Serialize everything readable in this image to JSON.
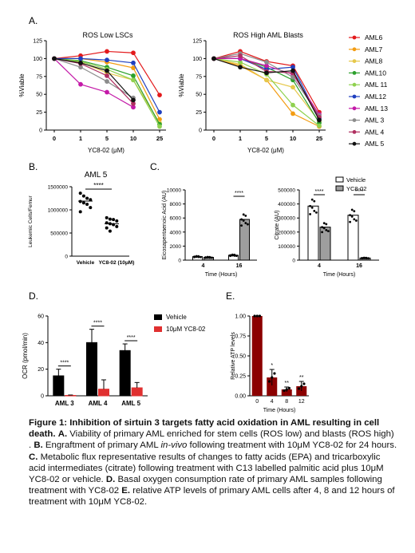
{
  "colors": {
    "AML6": "#e31a1c",
    "AML7": "#f39c12",
    "AML8": "#e6c84a",
    "AML10": "#2ca02c",
    "AML 11": "#8fd14f",
    "AML12": "#1f3fbf",
    "AML 13": "#c41aa8",
    "AML 3": "#8c8c8c",
    "AML 4": "#b03060",
    "AML 5": "#111111",
    "vehicle": "#000000",
    "treated": "#e03030",
    "panelE": "#8b0000"
  },
  "panels": {
    "A": {
      "label": "A.",
      "left_title": "ROS Low LSCs",
      "right_title": "ROS High AML Blasts"
    },
    "B": {
      "label": "B.",
      "title": "AML 5"
    },
    "C": {
      "label": "C."
    },
    "D": {
      "label": "D."
    },
    "E": {
      "label": "E."
    }
  },
  "legendA": [
    "AML6",
    "AML7",
    "AML8",
    "AML10",
    "AML 11",
    "AML12",
    "AML 13",
    "AML 3",
    "AML 4",
    "AML 5"
  ],
  "chart_data": [
    {
      "id": "A-left",
      "type": "line",
      "title": "ROS Low LSCs",
      "xlabel": "YC8-02 (μM)",
      "ylabel": "%Viable",
      "x": [
        "0",
        "1",
        "5",
        "10",
        "25"
      ],
      "ylim": [
        0,
        125
      ],
      "yticks": [
        "0",
        "25",
        "50",
        "75",
        "100",
        "125"
      ],
      "series": [
        {
          "name": "AML6",
          "values": [
            100,
            104,
            110,
            108,
            49
          ]
        },
        {
          "name": "AML7",
          "values": [
            100,
            100,
            95,
            87,
            15
          ]
        },
        {
          "name": "AML8",
          "values": [
            100,
            95,
            80,
            70,
            10
          ]
        },
        {
          "name": "AML10",
          "values": [
            100,
            97,
            88,
            76,
            8
          ]
        },
        {
          "name": "AML 11",
          "values": [
            100,
            96,
            85,
            70,
            5
          ]
        },
        {
          "name": "AML12",
          "values": [
            100,
            100,
            98,
            94,
            25
          ]
        },
        {
          "name": "AML 13",
          "values": [
            100,
            64,
            53,
            32,
            null
          ]
        },
        {
          "name": "AML 3",
          "values": [
            100,
            88,
            68,
            45,
            null
          ]
        },
        {
          "name": "AML 4",
          "values": [
            100,
            93,
            76,
            37,
            null
          ]
        },
        {
          "name": "AML 5",
          "values": [
            100,
            94,
            83,
            42,
            null
          ]
        }
      ]
    },
    {
      "id": "A-right",
      "type": "line",
      "title": "ROS High AML Blasts",
      "xlabel": "YC8-02 (μM)",
      "ylabel": "%Viable",
      "x": [
        "0",
        "1",
        "5",
        "10",
        "25"
      ],
      "ylim": [
        0,
        125
      ],
      "yticks": [
        "0",
        "25",
        "50",
        "75",
        "100",
        "125"
      ],
      "series": [
        {
          "name": "AML6",
          "values": [
            100,
            110,
            96,
            90,
            25
          ]
        },
        {
          "name": "AML7",
          "values": [
            100,
            90,
            70,
            23,
            5
          ]
        },
        {
          "name": "AML8",
          "values": [
            100,
            92,
            70,
            60,
            12
          ]
        },
        {
          "name": "AML10",
          "values": [
            100,
            100,
            88,
            70,
            10
          ]
        },
        {
          "name": "AML 11",
          "values": [
            100,
            95,
            78,
            35,
            6
          ]
        },
        {
          "name": "AML12",
          "values": [
            100,
            100,
            85,
            88,
            16
          ]
        },
        {
          "name": "AML 13",
          "values": [
            100,
            100,
            90,
            78,
            22
          ]
        },
        {
          "name": "AML 3",
          "values": [
            100,
            107,
            95,
            74,
            20
          ]
        },
        {
          "name": "AML 4",
          "values": [
            100,
            104,
            82,
            80,
            18
          ]
        },
        {
          "name": "AML 5",
          "values": [
            100,
            88,
            80,
            83,
            14
          ]
        }
      ]
    },
    {
      "id": "B",
      "type": "scatter",
      "title": "AML 5",
      "ylabel": "Leukemic Cells/Femur",
      "categories": [
        "Vehicle",
        "YC8-02 (10μM)"
      ],
      "ylim": [
        0,
        1500000
      ],
      "yticks": [
        "0",
        "500000",
        "1000000",
        "1500000"
      ],
      "means": [
        1190000,
        700000
      ],
      "points": [
        [
          1360000,
          1300000,
          1250000,
          1220000,
          1180000,
          1150000,
          1120000,
          1050000,
          960000
        ],
        [
          830000,
          800000,
          790000,
          760000,
          720000,
          700000,
          680000,
          640000,
          610000,
          540000
        ]
      ],
      "significance": "****"
    },
    {
      "id": "C-left",
      "type": "bar",
      "ylabel": "Eicosapentaenoic Acid (AU)",
      "xlabel": "Time (Hours)",
      "categories": [
        "4",
        "16"
      ],
      "ylim": [
        0,
        10000
      ],
      "yticks": [
        "0",
        "2000",
        "4000",
        "6000",
        "8000",
        "10000"
      ],
      "series": [
        {
          "name": "Vehicle",
          "values": [
            500,
            700
          ]
        },
        {
          "name": "YC8-02",
          "values": [
            400,
            5800
          ]
        }
      ],
      "significance": [
        "****"
      ]
    },
    {
      "id": "C-right",
      "type": "bar",
      "ylabel": "Citrate (AU)",
      "xlabel": "Time (Hours)",
      "categories": [
        "4",
        "16"
      ],
      "ylim": [
        0,
        500000
      ],
      "yticks": [
        "0",
        "100000",
        "200000",
        "300000",
        "400000",
        "500000"
      ],
      "series": [
        {
          "name": "Vehicle",
          "values": [
            385000,
            320000
          ]
        },
        {
          "name": "YC8-02",
          "values": [
            235000,
            15000
          ]
        }
      ],
      "legend": [
        "Vehicle",
        "YC8-02"
      ],
      "significance": [
        "****",
        "****"
      ]
    },
    {
      "id": "D",
      "type": "bar",
      "ylabel": "OCR (pmol/min)",
      "categories": [
        "AML 3",
        "AML 4",
        "AML 5"
      ],
      "ylim": [
        0,
        60
      ],
      "yticks": [
        "0",
        "20",
        "40",
        "60"
      ],
      "series": [
        {
          "name": "Vehicle",
          "values": [
            15,
            40,
            34
          ]
        },
        {
          "name": "10μM YC8-02",
          "values": [
            0.3,
            5,
            6
          ]
        }
      ],
      "errors": [
        [
          5,
          10,
          5
        ],
        [
          0.3,
          7,
          4
        ]
      ],
      "legend": [
        "Vehicle",
        "10μM YC8-02"
      ],
      "significance": [
        "****",
        "****",
        "****"
      ]
    },
    {
      "id": "E",
      "type": "bar",
      "ylabel": "Relative ATP levels",
      "xlabel": "Time (Hours)",
      "categories": [
        "0",
        "4",
        "8",
        "12"
      ],
      "ylim": [
        0,
        1.0
      ],
      "yticks": [
        "0.00",
        "0.25",
        "0.50",
        "0.75",
        "1.00"
      ],
      "values": [
        1.0,
        0.23,
        0.08,
        0.12
      ],
      "errors": [
        0.0,
        0.1,
        0.03,
        0.06
      ],
      "significance": [
        "",
        "*",
        "**",
        "**"
      ]
    }
  ],
  "caption": {
    "title": "Figure 1: Inhibition of sirtuin 3 targets fatty acid oxidation in AML resulting in cell death.",
    "a_label": "A.",
    "a_text": " Viability of primary AML enriched for stem cells (ROS low) and blasts (ROS high) . ",
    "b_label": "B.",
    "b_text1": " Engraftment of primary AML ",
    "b_italic": "in-vivo",
    "b_text2": " following treatment with 10μM YC8-02 for 24 hours. ",
    "c_label": "C.",
    "c_text": " Metabolic flux representative results of changes to fatty acids (EPA) and tricarboxylic acid intermediates (citrate) following treatment with C13 labelled palmitic acid plus 10μM YC8-02 or vehicle. ",
    "d_label": "D.",
    "d_text": " Basal oxygen consumption rate of primary AML samples following treatment with YC8-02 ",
    "e_label": "E.",
    "e_text": " relative ATP levels of primary AML cells after 4, 8 and 12 hours of treatment with 10μM YC8-02."
  }
}
